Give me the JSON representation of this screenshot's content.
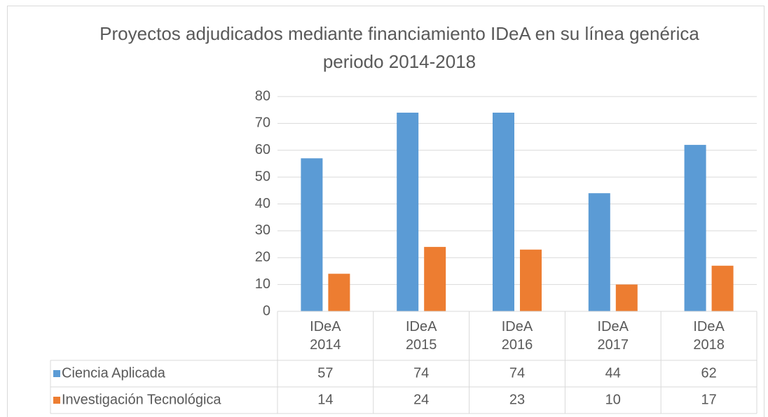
{
  "chart_data": {
    "type": "bar",
    "title": "Proyectos adjudicados mediante financiamiento IDeA en su línea genérica periodo 2014-2018",
    "categories": [
      "IDeA 2014",
      "IDeA 2015",
      "IDeA 2016",
      "IDeA 2017",
      "IDeA 2018"
    ],
    "series": [
      {
        "name": "Ciencia Aplicada",
        "color": "#5b9bd5",
        "values": [
          57,
          74,
          74,
          44,
          62
        ]
      },
      {
        "name": "Investigación Tecnológica",
        "color": "#ed7d31",
        "values": [
          14,
          24,
          23,
          10,
          17
        ]
      }
    ],
    "ylim": [
      0,
      80
    ],
    "yticks": [
      0,
      10,
      20,
      30,
      40,
      50,
      60,
      70,
      80
    ],
    "grid": true,
    "data_table": true
  }
}
